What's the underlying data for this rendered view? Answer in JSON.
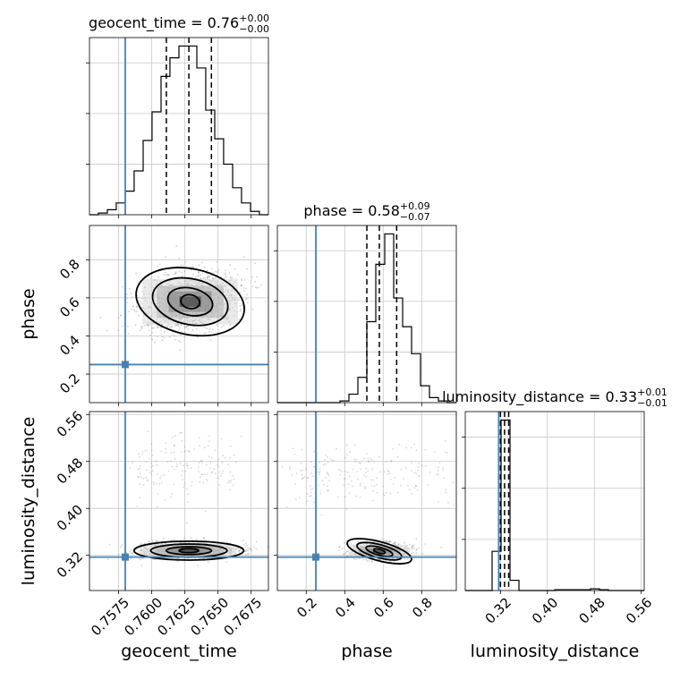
{
  "chart_data": {
    "type": "corner",
    "parameters": [
      "geocent_time",
      "phase",
      "luminosity_distance"
    ],
    "injection": {
      "geocent_time": 0.758,
      "phase": 0.25,
      "luminosity_distance": 0.317
    },
    "diagonal": [
      {
        "param": "geocent_time",
        "title": {
          "lhs": "geocent_time = 0.76",
          "plus": "+0.00",
          "minus": "−0.00"
        },
        "xlim": [
          0.7553,
          0.7688
        ],
        "ylim": [
          0,
          1.05
        ],
        "quantiles": [
          0.7611,
          0.7628,
          0.7645
        ],
        "bins": [
          0.7553,
          0.75597,
          0.75665,
          0.75732,
          0.758,
          0.75867,
          0.75935,
          0.76002,
          0.7607,
          0.76137,
          0.76205,
          0.76272,
          0.7634,
          0.76407,
          0.76475,
          0.76542,
          0.7661,
          0.76677,
          0.76745,
          0.76812,
          0.7688
        ],
        "counts": [
          0.0,
          0.01,
          0.03,
          0.07,
          0.14,
          0.26,
          0.44,
          0.61,
          0.82,
          0.93,
          1.0,
          1.0,
          0.87,
          0.62,
          0.45,
          0.3,
          0.16,
          0.07,
          0.02,
          0.0
        ],
        "ticks": [
          0.7575,
          0.76,
          0.7625,
          0.765,
          0.7675
        ],
        "tick_labels": [
          "0.7575",
          "0.7600",
          "0.7625",
          "0.7650",
          "0.7675"
        ],
        "xlabel": "geocent_time"
      },
      {
        "param": "phase",
        "title": {
          "lhs": "phase = 0.58",
          "plus": "+0.09",
          "minus": "−0.07"
        },
        "xlim": [
          0.05,
          0.98
        ],
        "ylim": [
          0,
          1.05
        ],
        "quantiles": [
          0.515,
          0.58,
          0.67
        ],
        "bins": [
          0.05,
          0.0965,
          0.143,
          0.1895,
          0.236,
          0.2825,
          0.329,
          0.3755,
          0.422,
          0.4685,
          0.515,
          0.5615,
          0.608,
          0.6545,
          0.701,
          0.7475,
          0.794,
          0.8405,
          0.887,
          0.9335,
          0.98
        ],
        "counts": [
          0.0,
          0.0,
          0.0,
          0.0,
          0.0,
          0.0,
          0.0,
          0.01,
          0.05,
          0.15,
          0.48,
          0.82,
          1.0,
          0.62,
          0.45,
          0.29,
          0.1,
          0.03,
          0.01,
          0.0
        ],
        "ticks": [
          0.2,
          0.4,
          0.6,
          0.8
        ],
        "tick_labels": [
          "0.2",
          "0.4",
          "0.6",
          "0.8"
        ],
        "xlabel": "phase"
      },
      {
        "param": "luminosity_distance",
        "title": {
          "lhs": "luminosity_distance = 0.33",
          "plus": "+0.01",
          "minus": "−0.01"
        },
        "xlim": [
          0.26,
          0.565
        ],
        "ylim": [
          0,
          1.05
        ],
        "quantiles": [
          0.32,
          0.327,
          0.334
        ],
        "bins": [
          0.26,
          0.27525,
          0.2905,
          0.30575,
          0.321,
          0.33625,
          0.3515,
          0.36675,
          0.382,
          0.39725,
          0.4125,
          0.42775,
          0.443,
          0.45825,
          0.4735,
          0.48875,
          0.504,
          0.51925,
          0.5345,
          0.54975,
          0.565
        ],
        "counts": [
          0.0,
          0.0,
          0.0,
          0.23,
          1.0,
          0.06,
          0.0,
          0.0,
          0.0,
          0.0,
          0.005,
          0.005,
          0.005,
          0.005,
          0.01,
          0.005,
          0.0,
          0.0,
          0.0,
          0.0
        ],
        "ticks": [
          0.32,
          0.4,
          0.48,
          0.56
        ],
        "tick_labels": [
          "0.32",
          "0.40",
          "0.48",
          "0.56"
        ],
        "xlabel": "luminosity_distance"
      }
    ],
    "off_diagonal": [
      {
        "x": "geocent_time",
        "y": "phase",
        "center": [
          0.7629,
          0.58
        ],
        "spread": [
          0.0018,
          0.075
        ]
      },
      {
        "x": "geocent_time",
        "y": "luminosity_distance",
        "center": [
          0.7628,
          0.328
        ],
        "spread": [
          0.0018,
          0.007
        ]
      },
      {
        "x": "phase",
        "y": "luminosity_distance",
        "center": [
          0.58,
          0.327
        ],
        "spread": [
          0.075,
          0.007
        ]
      }
    ],
    "ylabels": [
      "phase",
      "luminosity_distance"
    ],
    "colors": {
      "truth": "#4682b4",
      "hist": "#000000",
      "grid": "#c8c8c8",
      "points": "#7f7f7f"
    }
  }
}
